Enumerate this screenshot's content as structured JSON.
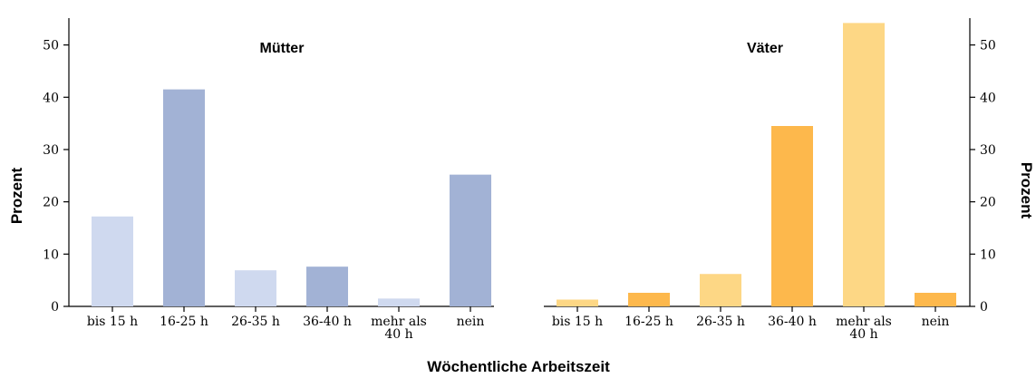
{
  "chart_data": {
    "type": "bar",
    "xlabel": "Wöchentliche Arbeitszeit",
    "ylabel": "Prozent",
    "ylim": [
      0,
      55
    ],
    "yticks": [
      0,
      10,
      20,
      30,
      40,
      50
    ],
    "grid": false,
    "panels": [
      {
        "title": "Mütter",
        "y_axis_side": "left",
        "categories": [
          "bis 15 h",
          "16-25 h",
          "26-35 h",
          "36-40 h",
          "mehr als 40 h",
          "nein"
        ],
        "category_lines": [
          [
            "bis 15 h"
          ],
          [
            "16-25 h"
          ],
          [
            "26-35 h"
          ],
          [
            "36-40 h"
          ],
          [
            "mehr als",
            "40 h"
          ],
          [
            "nein"
          ]
        ],
        "values": [
          17.2,
          41.5,
          6.9,
          7.6,
          1.5,
          25.2
        ],
        "colors": [
          "#cfd9ef",
          "#a2b2d5",
          "#cfd9ef",
          "#a2b2d5",
          "#cfd9ef",
          "#a2b2d5"
        ]
      },
      {
        "title": "Väter",
        "y_axis_side": "right",
        "categories": [
          "bis 15 h",
          "16-25 h",
          "26-35 h",
          "36-40 h",
          "mehr als 40 h",
          "nein"
        ],
        "category_lines": [
          [
            "bis 15 h"
          ],
          [
            "16-25 h"
          ],
          [
            "26-35 h"
          ],
          [
            "36-40 h"
          ],
          [
            "mehr als",
            "40 h"
          ],
          [
            "nein"
          ]
        ],
        "values": [
          1.3,
          2.6,
          6.2,
          34.5,
          54.2,
          2.6
        ],
        "colors": [
          "#fdd785",
          "#fdb84c",
          "#fdd785",
          "#fdb84c",
          "#fdd785",
          "#fdb84c"
        ]
      }
    ]
  }
}
